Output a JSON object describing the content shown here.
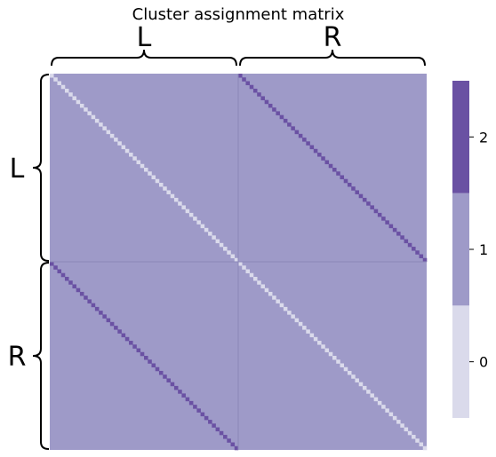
{
  "chart_data": {
    "type": "heatmap",
    "title": "Cluster assignment matrix",
    "n_nodes": 100,
    "groups": [
      "L",
      "R"
    ],
    "group_sizes": [
      50,
      50
    ],
    "values": {
      "off_diagonal": 1,
      "main_diagonal": 0,
      "paired_diagonal": 2
    },
    "colorbar": {
      "ticks": [
        0,
        1,
        2
      ],
      "tick_labels": [
        "0",
        "1",
        "2"
      ],
      "vmin": -0.5,
      "vmax": 2.5,
      "colors": [
        "#dadaeb",
        "#9e9ac8",
        "#6a51a3"
      ]
    },
    "grid": false
  }
}
